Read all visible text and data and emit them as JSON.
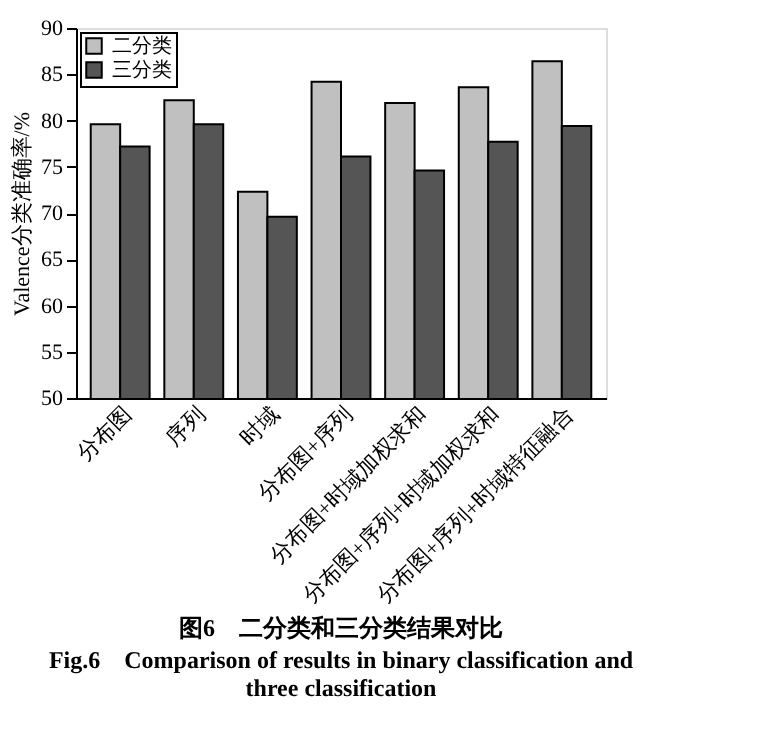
{
  "chart_data": {
    "type": "bar",
    "title": "图6　二分类和三分类结果对比",
    "subtitle": "Fig.6　Comparison of results in binary classification and three classification",
    "ylabel": "Valence分类准确率/%",
    "categories": [
      "分布图",
      "序列",
      "时域",
      "分布图+序列",
      "分布图+时域加权求和",
      "分布图+序列+时域加权求和",
      "分布图+序列+时域特征融合"
    ],
    "series": [
      {
        "name": "二分类",
        "color": "#c0c0c0",
        "values": [
          79.6,
          82.2,
          72.3,
          84.2,
          81.9,
          83.6,
          86.4
        ]
      },
      {
        "name": "三分类",
        "color": "#555555",
        "values": [
          77.2,
          79.6,
          69.6,
          76.1,
          74.6,
          77.7,
          79.4
        ]
      }
    ],
    "ylim": [
      50,
      90
    ],
    "yticks": [
      50,
      55,
      60,
      65,
      70,
      75,
      80,
      85,
      90
    ],
    "grid": false,
    "legend": "top left"
  }
}
